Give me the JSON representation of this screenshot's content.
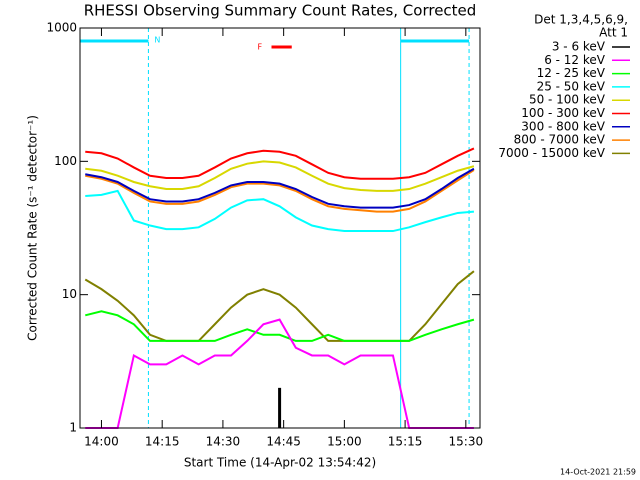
{
  "chart_data": {
    "type": "line",
    "log_y": true,
    "title": "RHESSI Observing Summary Count Rates, Corrected",
    "x_label": "Start Time (14-Apr-02 13:54:42)",
    "y_label": "Corrected Count Rate (s⁻¹ detector⁻¹)",
    "legend_header": [
      "Det 1,3,4,5,6,9,",
      "Att 1"
    ],
    "footer": "14-Oct-2021 21:59",
    "night": [
      [
        834.7,
        851.6
      ],
      [
        913.9,
        930.8
      ]
    ],
    "night_label": "N",
    "night_color": "#00e0ff",
    "flare": [
      882,
      887
    ],
    "flare_label": "F",
    "flare_color": "#ff0000",
    "xlim": [
      834.7,
      933.5
    ],
    "xticks": [
      {
        "value": 840,
        "label": "14:00"
      },
      {
        "value": 855,
        "label": "14:15"
      },
      {
        "value": 870,
        "label": "14:30"
      },
      {
        "value": 885,
        "label": "14:45"
      },
      {
        "value": 900,
        "label": "15:00"
      },
      {
        "value": 915,
        "label": "15:15"
      },
      {
        "value": 930,
        "label": "15:30"
      }
    ],
    "ylim": [
      1,
      1000
    ],
    "yticks": [
      1,
      10,
      100,
      1000
    ],
    "x": [
      836,
      840,
      844,
      848,
      852,
      856,
      860,
      864,
      868,
      872,
      876,
      880,
      884,
      888,
      892,
      896,
      900,
      904,
      908,
      912,
      916,
      920,
      924,
      928,
      932
    ],
    "series": [
      {
        "name": "3 - 6 keV",
        "color": "#000000",
        "values": [
          null,
          null,
          null,
          null,
          null,
          null,
          null,
          null,
          null,
          null,
          null,
          null,
          2,
          null,
          null,
          null,
          null,
          null,
          null,
          null,
          null,
          null,
          null,
          null,
          null
        ]
      },
      {
        "name": "6 - 12 keV",
        "color": "#ff00ff",
        "values": [
          1,
          1,
          1,
          3.5,
          3,
          3,
          3.5,
          3,
          3.5,
          3.5,
          4.5,
          6,
          6.5,
          4,
          3.5,
          3.5,
          3,
          3.5,
          3.5,
          3.5,
          1,
          1,
          1,
          1,
          1
        ]
      },
      {
        "name": "12 - 25 keV",
        "color": "#00ff00",
        "values": [
          7,
          7.5,
          7,
          6,
          4.5,
          4.5,
          4.5,
          4.5,
          4.5,
          5,
          5.5,
          5,
          5,
          4.5,
          4.5,
          5,
          4.5,
          4.5,
          4.5,
          4.5,
          4.5,
          5,
          5.5,
          6,
          6.5
        ]
      },
      {
        "name": "25 - 50 keV",
        "color": "#00ffff",
        "values": [
          55,
          56,
          60,
          36,
          33,
          31,
          31,
          32,
          37,
          45,
          51,
          52,
          46,
          38,
          33,
          31,
          30,
          30,
          30,
          30,
          32,
          35,
          38,
          41,
          42
        ]
      },
      {
        "name": "50 - 100 keV",
        "color": "#d8d800",
        "values": [
          88,
          85,
          78,
          70,
          65,
          62,
          62,
          65,
          75,
          88,
          96,
          100,
          98,
          90,
          78,
          68,
          63,
          61,
          60,
          60,
          62,
          68,
          76,
          85,
          92
        ]
      },
      {
        "name": "100 - 300 keV",
        "color": "#ff0000",
        "values": [
          118,
          115,
          105,
          90,
          78,
          75,
          75,
          78,
          90,
          105,
          115,
          120,
          118,
          110,
          95,
          82,
          76,
          74,
          74,
          74,
          76,
          82,
          95,
          110,
          125
        ]
      },
      {
        "name": "300 - 800 keV",
        "color": "#0000c0",
        "values": [
          80,
          76,
          70,
          60,
          52,
          50,
          50,
          52,
          58,
          66,
          70,
          70,
          68,
          62,
          54,
          48,
          46,
          45,
          45,
          45,
          47,
          52,
          62,
          75,
          88
        ]
      },
      {
        "name": "800 - 7000 keV",
        "color": "#ff8000",
        "values": [
          78,
          74,
          68,
          58,
          50,
          48,
          48,
          50,
          56,
          64,
          68,
          68,
          66,
          60,
          52,
          46,
          44,
          43,
          42,
          42,
          44,
          50,
          60,
          72,
          86
        ]
      },
      {
        "name": "7000 - 15000 keV",
        "color": "#808000",
        "values": [
          13,
          11,
          9,
          7,
          5,
          4.5,
          4.5,
          4.5,
          6,
          8,
          10,
          11,
          10,
          8,
          6,
          4.5,
          4.5,
          4.5,
          4.5,
          4.5,
          4.5,
          6,
          8.5,
          12,
          15
        ]
      }
    ]
  }
}
